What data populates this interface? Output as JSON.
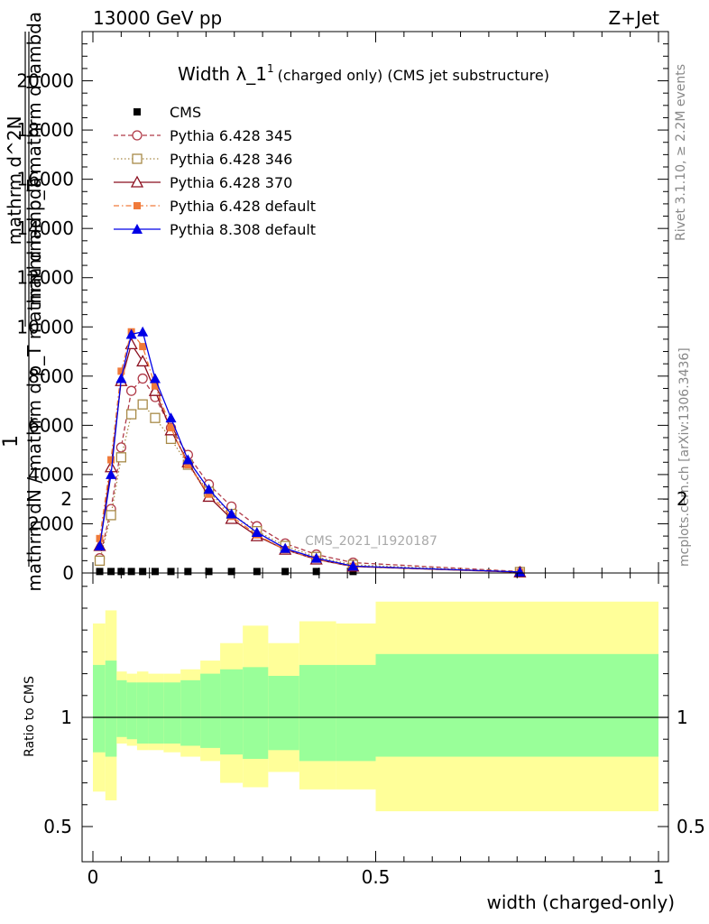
{
  "header": {
    "energy_label": "13000 GeV pp",
    "process_label": "Z+Jet"
  },
  "side_labels": {
    "rivet": "Rivet 3.1.10, ≥ 2.2M events",
    "mcplots": "mcplots.cern.ch [arXiv:1306.3436]"
  },
  "watermark": "CMS_2021_I1920187",
  "chart_data": [
    {
      "type": "line",
      "title": "Width λ_1",
      "title_superscript": "1",
      "subtitle": "(charged only) (CMS jet substructure)",
      "ylabel_lines": [
        "1",
        "mathrm dN / mathrm d p_T mathrm d lambda",
        "mathrm d^2N",
        "mathrm d p_T mathrm d lambda"
      ],
      "xlim": [
        0,
        1
      ],
      "ylim": [
        0,
        22000
      ],
      "yticks": [
        0,
        2000,
        4000,
        6000,
        8000,
        10000,
        12000,
        14000,
        16000,
        18000,
        20000
      ],
      "ytick_labels": [
        "0",
        "2000",
        "4000",
        "6000",
        "8000",
        "10000",
        "12000",
        "14000",
        "16000",
        "18000",
        "20000"
      ],
      "legend_position": "top-left",
      "x": [
        0.012,
        0.032,
        0.05,
        0.068,
        0.088,
        0.11,
        0.138,
        0.168,
        0.205,
        0.245,
        0.29,
        0.34,
        0.395,
        0.46,
        0.755
      ],
      "series": [
        {
          "name": "CMS",
          "color": "#000000",
          "marker": "square",
          "line": "none",
          "values": [
            60,
            60,
            60,
            60,
            60,
            60,
            60,
            60,
            60,
            60,
            60,
            60,
            60,
            60,
            60
          ]
        },
        {
          "name": "Pythia 6.428 345",
          "color": "#b03a48",
          "marker": "open-circle",
          "line": "dashed",
          "values": [
            600,
            2600,
            5100,
            7400,
            7900,
            7150,
            5900,
            4800,
            3600,
            2700,
            1900,
            1200,
            750,
            420,
            60
          ]
        },
        {
          "name": "Pythia 6.428 346",
          "color": "#a88a48",
          "marker": "open-square",
          "line": "dotted",
          "values": [
            500,
            2350,
            4700,
            6450,
            6850,
            6300,
            5450,
            4400,
            3300,
            2400,
            1700,
            1100,
            650,
            330,
            40
          ]
        },
        {
          "name": "Pythia 6.428 370",
          "color": "#8b0f1f",
          "marker": "open-triangle",
          "line": "solid",
          "values": [
            1100,
            4300,
            7800,
            9300,
            8600,
            7400,
            5800,
            4500,
            3100,
            2200,
            1500,
            950,
            550,
            260,
            30
          ]
        },
        {
          "name": "Pythia 6.428 default",
          "color": "#f07a3a",
          "marker": "filled-square",
          "line": "dashdot",
          "values": [
            1400,
            4600,
            8200,
            9800,
            9200,
            7600,
            5900,
            4400,
            3200,
            2300,
            1550,
            950,
            560,
            270,
            30
          ]
        },
        {
          "name": "Pythia 8.308 default",
          "color": "#0000e6",
          "marker": "filled-triangle",
          "line": "solid",
          "values": [
            1100,
            4000,
            7900,
            9700,
            9800,
            7900,
            6300,
            4600,
            3400,
            2400,
            1650,
            1000,
            600,
            280,
            40
          ]
        }
      ]
    },
    {
      "type": "area",
      "ylabel": "Ratio to CMS",
      "xlabel": "width (charged-only)",
      "xlim": [
        0,
        1
      ],
      "ylim": [
        0.35,
        2.35
      ],
      "xticks": [
        0,
        0.5,
        1
      ],
      "xtick_labels": [
        "0",
        "0.5",
        "1"
      ],
      "yticks": [
        0.5,
        1,
        2
      ],
      "ytick_labels": [
        "0.5",
        "1",
        "2"
      ],
      "reference_line": 1,
      "bins": [
        {
          "x0": 0.0,
          "x1": 0.022,
          "inner": [
            0.84,
            1.24
          ],
          "outer": [
            0.66,
            1.43
          ]
        },
        {
          "x0": 0.022,
          "x1": 0.042,
          "inner": [
            0.82,
            1.26
          ],
          "outer": [
            0.62,
            1.49
          ]
        },
        {
          "x0": 0.042,
          "x1": 0.06,
          "inner": [
            0.91,
            1.17
          ],
          "outer": [
            0.88,
            1.21
          ]
        },
        {
          "x0": 0.06,
          "x1": 0.078,
          "inner": [
            0.9,
            1.16
          ],
          "outer": [
            0.87,
            1.2
          ]
        },
        {
          "x0": 0.078,
          "x1": 0.098,
          "inner": [
            0.88,
            1.16
          ],
          "outer": [
            0.85,
            1.21
          ]
        },
        {
          "x0": 0.098,
          "x1": 0.125,
          "inner": [
            0.88,
            1.16
          ],
          "outer": [
            0.85,
            1.2
          ]
        },
        {
          "x0": 0.125,
          "x1": 0.155,
          "inner": [
            0.88,
            1.16
          ],
          "outer": [
            0.84,
            1.2
          ]
        },
        {
          "x0": 0.155,
          "x1": 0.19,
          "inner": [
            0.87,
            1.17
          ],
          "outer": [
            0.82,
            1.22
          ]
        },
        {
          "x0": 0.19,
          "x1": 0.225,
          "inner": [
            0.86,
            1.2
          ],
          "outer": [
            0.8,
            1.26
          ]
        },
        {
          "x0": 0.225,
          "x1": 0.265,
          "inner": [
            0.83,
            1.22
          ],
          "outer": [
            0.7,
            1.34
          ]
        },
        {
          "x0": 0.265,
          "x1": 0.31,
          "inner": [
            0.81,
            1.23
          ],
          "outer": [
            0.68,
            1.42
          ]
        },
        {
          "x0": 0.31,
          "x1": 0.365,
          "inner": [
            0.85,
            1.19
          ],
          "outer": [
            0.75,
            1.34
          ]
        },
        {
          "x0": 0.365,
          "x1": 0.43,
          "inner": [
            0.8,
            1.24
          ],
          "outer": [
            0.67,
            1.44
          ]
        },
        {
          "x0": 0.43,
          "x1": 0.5,
          "inner": [
            0.8,
            1.24
          ],
          "outer": [
            0.67,
            1.43
          ]
        },
        {
          "x0": 0.5,
          "x1": 1.0,
          "inner": [
            0.82,
            1.29
          ],
          "outer": [
            0.57,
            1.53
          ]
        }
      ]
    }
  ]
}
